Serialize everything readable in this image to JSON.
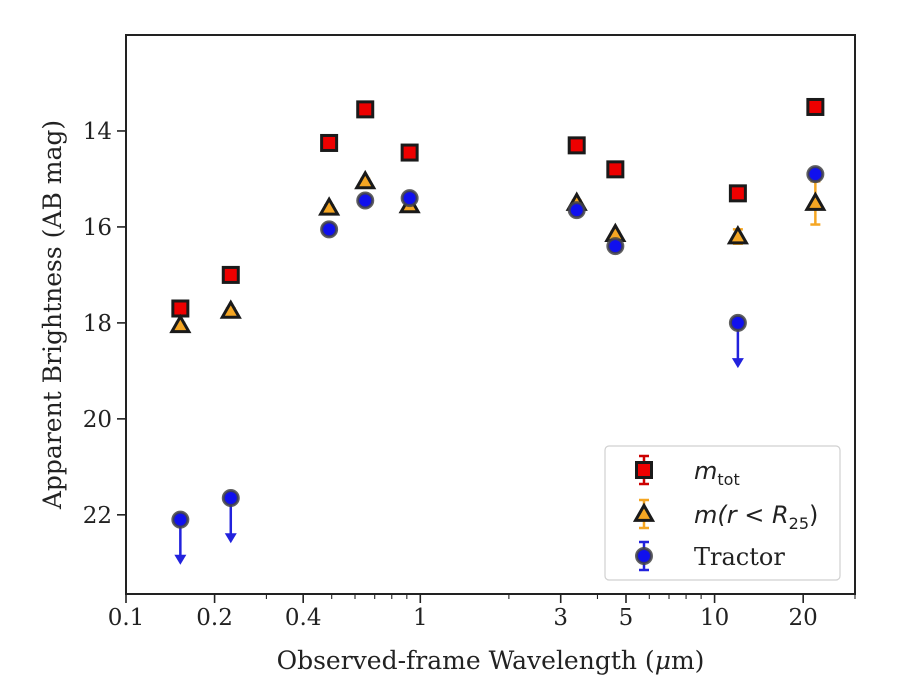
{
  "chart_data": {
    "type": "scatter",
    "xlabel_parts": [
      "Observed-frame Wavelength (",
      "μ",
      "m)"
    ],
    "ylabel": "Apparent Brightness (AB mag)",
    "xscale": "log",
    "xlim": [
      0.1,
      30
    ],
    "ylim": [
      23.65,
      12.0
    ],
    "y_inverted": true,
    "xticks": [
      {
        "value": 0.1,
        "label": "0.1"
      },
      {
        "value": 0.2,
        "label": "0.2"
      },
      {
        "value": 0.4,
        "label": "0.4"
      },
      {
        "value": 1,
        "label": "1"
      },
      {
        "value": 3,
        "label": "3"
      },
      {
        "value": 5,
        "label": "5"
      },
      {
        "value": 10,
        "label": "10"
      },
      {
        "value": 20,
        "label": "20"
      }
    ],
    "yticks": [
      {
        "value": 14,
        "label": "14"
      },
      {
        "value": 16,
        "label": "16"
      },
      {
        "value": 18,
        "label": "18"
      },
      {
        "value": 20,
        "label": "20"
      },
      {
        "value": 22,
        "label": "22"
      }
    ],
    "legend_position": "lower-right",
    "series": [
      {
        "id": "mtot",
        "legend_main": "m",
        "legend_sub": "tot",
        "marker": "square",
        "fill": "#ee0000",
        "edge": "#1a1a1a",
        "errcolor": "#cc0000",
        "points": [
          {
            "x": 0.153,
            "y": 17.7,
            "err": 0.05
          },
          {
            "x": 0.227,
            "y": 17.0,
            "err": 0.05
          },
          {
            "x": 0.49,
            "y": 14.25,
            "err": 0.05
          },
          {
            "x": 0.65,
            "y": 13.55,
            "err": 0.05
          },
          {
            "x": 0.92,
            "y": 14.45,
            "err": 0.05
          },
          {
            "x": 3.4,
            "y": 14.3,
            "err": 0.05
          },
          {
            "x": 4.6,
            "y": 14.8,
            "err": 0.05
          },
          {
            "x": 12.0,
            "y": 15.3,
            "err": 0.05
          },
          {
            "x": 22.0,
            "y": 13.5,
            "err": 0.05
          }
        ]
      },
      {
        "id": "mr25",
        "legend_main": "m(r < R",
        "legend_sub": "25",
        "legend_end": ")",
        "marker": "triangle",
        "fill": "#f5a623",
        "edge": "#1a1a1a",
        "errcolor": "#f5a623",
        "points": [
          {
            "x": 0.153,
            "y": 18.05,
            "err": 0.05
          },
          {
            "x": 0.227,
            "y": 17.75,
            "err": 0.05
          },
          {
            "x": 0.49,
            "y": 15.6,
            "err": 0.05
          },
          {
            "x": 0.65,
            "y": 15.05,
            "err": 0.05
          },
          {
            "x": 0.92,
            "y": 15.55,
            "err": 0.05
          },
          {
            "x": 3.4,
            "y": 15.5,
            "err": 0.05
          },
          {
            "x": 4.6,
            "y": 16.15,
            "err": 0.05
          },
          {
            "x": 12.0,
            "y": 16.2,
            "err": 0.15
          },
          {
            "x": 22.0,
            "y": 15.5,
            "err": 0.45
          }
        ]
      },
      {
        "id": "tractor",
        "name": "Tractor",
        "marker": "circle",
        "fill": "#1010ee",
        "edge": "#444444",
        "errcolor": "#2222dd",
        "points": [
          {
            "x": 0.153,
            "y": 22.1,
            "upper_limit": true
          },
          {
            "x": 0.227,
            "y": 21.65,
            "upper_limit": true
          },
          {
            "x": 0.49,
            "y": 16.05,
            "err": 0.05
          },
          {
            "x": 0.65,
            "y": 15.45,
            "err": 0.05
          },
          {
            "x": 0.92,
            "y": 15.4,
            "err": 0.05
          },
          {
            "x": 3.4,
            "y": 15.65,
            "err": 0.05
          },
          {
            "x": 4.6,
            "y": 16.4,
            "err": 0.05
          },
          {
            "x": 12.0,
            "y": 18.0,
            "upper_limit": true
          },
          {
            "x": 22.0,
            "y": 14.9,
            "err": 0.08
          }
        ]
      }
    ]
  }
}
